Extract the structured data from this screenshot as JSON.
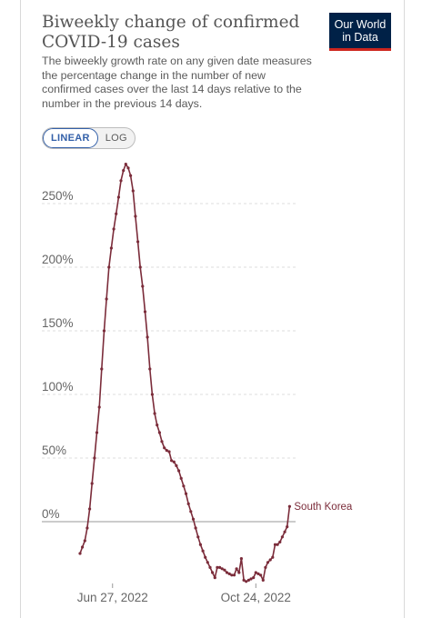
{
  "header": {
    "title_line1": "Biweekly change of confirmed",
    "title_line2": "COVID-19 cases",
    "subtitle": "The biweekly growth rate on any given date measures the percentage change in the number of new confirmed cases over the last 14 days relative to the number in the previous 14 days."
  },
  "logo": {
    "line1": "Our World",
    "line2": "in Data"
  },
  "scale_toggle": {
    "linear": "LINEAR",
    "log": "LOG",
    "active": "LINEAR"
  },
  "colors": {
    "series": "#7b2c3a",
    "grid": "#dddddd",
    "zero_line": "#999999",
    "logo_bg": "#002147",
    "logo_accent": "#ce261e",
    "toggle_active": "#3360a9"
  },
  "chart_data": {
    "type": "line",
    "title": "Biweekly change of confirmed COVID-19 cases",
    "xlabel": "",
    "ylabel": "",
    "xlim": [
      "2022-05-31",
      "2022-11-26"
    ],
    "ylim": [
      -50,
      290
    ],
    "y_ticks": [
      0,
      50,
      100,
      150,
      200,
      250
    ],
    "y_tick_labels": [
      "0%",
      "50%",
      "100%",
      "150%",
      "200%",
      "250%"
    ],
    "x_ticks": [
      "2022-06-27",
      "2022-10-24"
    ],
    "x_tick_labels": [
      "Jun 27, 2022",
      "Oct 24, 2022"
    ],
    "grid": "horizontal dashed",
    "series": [
      {
        "name": "South Korea",
        "color": "#7b2c3a",
        "points": [
          [
            "2022-05-31",
            -25
          ],
          [
            "2022-06-02",
            -20
          ],
          [
            "2022-06-04",
            -15
          ],
          [
            "2022-06-06",
            -5
          ],
          [
            "2022-06-08",
            10
          ],
          [
            "2022-06-10",
            30
          ],
          [
            "2022-06-12",
            50
          ],
          [
            "2022-06-14",
            70
          ],
          [
            "2022-06-16",
            90
          ],
          [
            "2022-06-18",
            120
          ],
          [
            "2022-06-20",
            150
          ],
          [
            "2022-06-22",
            175
          ],
          [
            "2022-06-24",
            200
          ],
          [
            "2022-06-26",
            215
          ],
          [
            "2022-06-28",
            230
          ],
          [
            "2022-06-30",
            242
          ],
          [
            "2022-07-02",
            255
          ],
          [
            "2022-07-04",
            268
          ],
          [
            "2022-07-06",
            276
          ],
          [
            "2022-07-08",
            281
          ],
          [
            "2022-07-10",
            278
          ],
          [
            "2022-07-12",
            272
          ],
          [
            "2022-07-14",
            260
          ],
          [
            "2022-07-16",
            240
          ],
          [
            "2022-07-18",
            220
          ],
          [
            "2022-07-20",
            200
          ],
          [
            "2022-07-22",
            185
          ],
          [
            "2022-07-24",
            165
          ],
          [
            "2022-07-26",
            145
          ],
          [
            "2022-07-28",
            120
          ],
          [
            "2022-07-30",
            100
          ],
          [
            "2022-08-01",
            85
          ],
          [
            "2022-08-03",
            76
          ],
          [
            "2022-08-05",
            70
          ],
          [
            "2022-08-07",
            63
          ],
          [
            "2022-08-09",
            58
          ],
          [
            "2022-08-11",
            56
          ],
          [
            "2022-08-13",
            55
          ],
          [
            "2022-08-15",
            48
          ],
          [
            "2022-08-17",
            47
          ],
          [
            "2022-08-19",
            44
          ],
          [
            "2022-08-21",
            40
          ],
          [
            "2022-08-23",
            34
          ],
          [
            "2022-08-25",
            28
          ],
          [
            "2022-08-27",
            22
          ],
          [
            "2022-08-29",
            14
          ],
          [
            "2022-08-31",
            8
          ],
          [
            "2022-09-02",
            2
          ],
          [
            "2022-09-04",
            -5
          ],
          [
            "2022-09-06",
            -12
          ],
          [
            "2022-09-08",
            -18
          ],
          [
            "2022-09-10",
            -23
          ],
          [
            "2022-09-12",
            -28
          ],
          [
            "2022-09-14",
            -32
          ],
          [
            "2022-09-16",
            -36
          ],
          [
            "2022-09-18",
            -40
          ],
          [
            "2022-09-20",
            -44
          ],
          [
            "2022-09-22",
            -36
          ],
          [
            "2022-09-24",
            -36
          ],
          [
            "2022-09-26",
            -37
          ],
          [
            "2022-09-28",
            -38
          ],
          [
            "2022-09-30",
            -40
          ],
          [
            "2022-10-02",
            -41
          ],
          [
            "2022-10-04",
            -42
          ],
          [
            "2022-10-06",
            -42
          ],
          [
            "2022-10-08",
            -37
          ],
          [
            "2022-10-10",
            -40
          ],
          [
            "2022-10-12",
            -29
          ],
          [
            "2022-10-14",
            -46
          ],
          [
            "2022-10-16",
            -47
          ],
          [
            "2022-10-18",
            -46
          ],
          [
            "2022-10-20",
            -45
          ],
          [
            "2022-10-22",
            -44
          ],
          [
            "2022-10-24",
            -40
          ],
          [
            "2022-10-26",
            -41
          ],
          [
            "2022-10-28",
            -42
          ],
          [
            "2022-10-30",
            -46
          ],
          [
            "2022-11-01",
            -36
          ],
          [
            "2022-11-03",
            -32
          ],
          [
            "2022-11-05",
            -30
          ],
          [
            "2022-11-07",
            -28
          ],
          [
            "2022-11-09",
            -18
          ],
          [
            "2022-11-11",
            -18
          ],
          [
            "2022-11-13",
            -16
          ],
          [
            "2022-11-15",
            -12
          ],
          [
            "2022-11-17",
            -8
          ],
          [
            "2022-11-19",
            -4
          ],
          [
            "2022-11-21",
            12
          ]
        ]
      }
    ]
  }
}
